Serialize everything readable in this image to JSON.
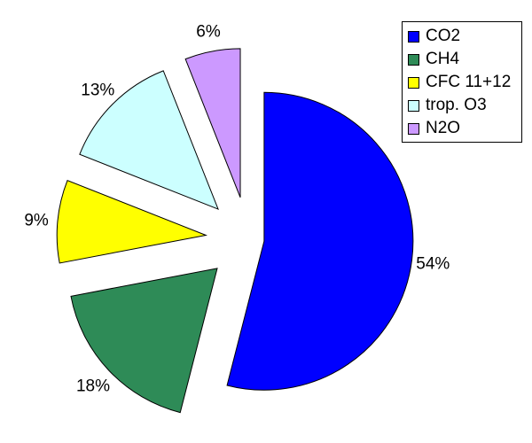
{
  "chart_data": {
    "type": "pie",
    "exploded": true,
    "title": "",
    "slices": [
      {
        "name": "CO2",
        "value": 54,
        "label": "54%",
        "color": "#0000ff"
      },
      {
        "name": "CH4",
        "value": 18,
        "label": "18%",
        "color": "#2e8b57"
      },
      {
        "name": "CFC 11+12",
        "value": 9,
        "label": "9%",
        "color": "#ffff00"
      },
      {
        "name": "trop. O3",
        "value": 13,
        "label": "13%",
        "color": "#ccffff"
      },
      {
        "name": "N2O",
        "value": 6,
        "label": "6%",
        "color": "#cc99ff"
      }
    ],
    "legend_position": "top-right",
    "legend": [
      "CO2",
      "CH4",
      "CFC 11+12",
      "trop. O3",
      "N2O"
    ]
  }
}
